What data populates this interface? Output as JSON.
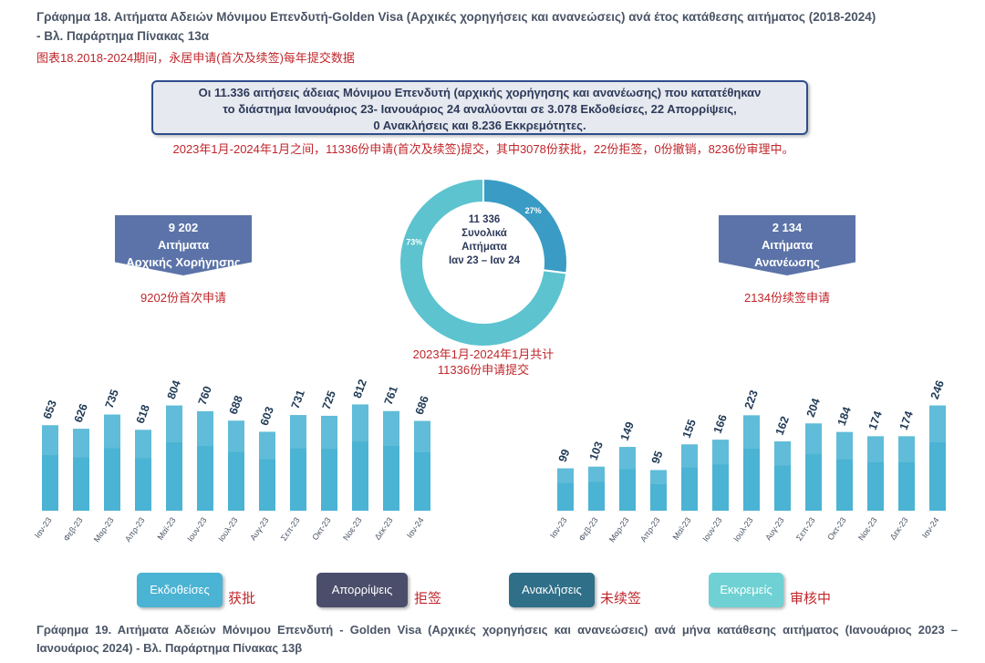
{
  "header": {
    "title_line1": "Γράφημα 18.  Αιτήματα Αδειών Μόνιμου Επενδυτή-Golden Visa (Αρχικές χορηγήσεις και ανανεώσεις) ανά έτος κατάθεσης αιτήματος (2018-2024)",
    "title_line2": "- Βλ. Παράρτημα  Πίνακας 13α",
    "title_cn": "图表18.2018-2024期间，永居申请(首次及续签)每年提交数据"
  },
  "infobox": {
    "line1": "Οι 11.336 αιτήσεις άδειας Μόνιμου Επενδυτή (αρχικής χορήγησης και ανανέωσης) που κατατέθηκαν",
    "line2": "το διάστημα Ιανουάριος 23- Ιανουάριος 24 αναλύονται σε 3.078 Εκδοθείσες, 22 Απορρίψεις,",
    "line3": "0 Ανακλήσεις και 8.236 Εκκρεμότητες.",
    "cn": "2023年1月-2024年1月之间，11336份申请(首次及续签)提交，其中3078份获批，22份拒签，0份撤销，8236份审理中。"
  },
  "left_summary": {
    "value": "9 202",
    "line2": "Αιτήματα",
    "line3": "Αρχικής Χορήγησης",
    "cn": "9202份首次申请"
  },
  "right_summary": {
    "value": "2 134",
    "line2": "Αιτήματα",
    "line3": "Ανανέωσης",
    "cn": "2134份续签申请"
  },
  "donut": {
    "center_value": "11 336",
    "center_line2": "Συνολικά",
    "center_line3": "Αιτήματα",
    "center_line4": "Ιαν 23 – Ιαν 24",
    "cn_line1": "2023年1月-2024年1月共计",
    "cn_line2": "11336份申请提交"
  },
  "chart_data": [
    {
      "type": "pie",
      "labels": [
        "27%",
        "73%"
      ],
      "values": [
        27,
        73
      ],
      "colors": [
        "#3a9cc4",
        "#5cc3cf"
      ]
    },
    {
      "type": "bar",
      "categories": [
        "Ιαν-23",
        "Φεβ-23",
        "Μαρ-23",
        "Απρ-23",
        "Μαϊ-23",
        "Ιουν-23",
        "Ιουλ-23",
        "Αυγ-23",
        "Σεπ-23",
        "Οκτ-23",
        "Νοε-23",
        "Δεκ-23",
        "Ιαν-24"
      ],
      "values": [
        653,
        626,
        735,
        618,
        804,
        760,
        688,
        603,
        731,
        725,
        812,
        761,
        686
      ],
      "ylim": [
        0,
        850
      ],
      "color": "#4bb3d3"
    },
    {
      "type": "bar",
      "categories": [
        "Ιαν-23",
        "Φεβ-23",
        "Μαρ-23",
        "Απρ-23",
        "Μαϊ-23",
        "Ιουν-23",
        "Ιουλ-23",
        "Αυγ-23",
        "Σεπ-23",
        "Οκτ-23",
        "Νοε-23",
        "Δεκ-23",
        "Ιαν-24"
      ],
      "values": [
        99,
        103,
        149,
        95,
        155,
        166,
        223,
        162,
        204,
        184,
        174,
        174,
        246
      ],
      "ylim": [
        0,
        260
      ],
      "color": "#4bb3d3"
    }
  ],
  "legend": [
    {
      "label": "Εκδοθείσες",
      "cn": "获批",
      "color": "#4bb3d3"
    },
    {
      "label": "Απορρίψεις",
      "cn": "拒签",
      "color": "#4a4e6a"
    },
    {
      "label": "Ανακλήσεις",
      "cn": "未续签",
      "color": "#2f6f88"
    },
    {
      "label": "Εκκρεμείς",
      "cn": "审核中",
      "color": "#6fd1d3"
    }
  ],
  "footer": {
    "text": "Γράφημα 19. Αιτήματα Αδειών Μόνιμου Επενδυτή - Golden Visa (Αρχικές χορηγήσεις και ανανεώσεις) ανά μήνα κατάθεσης αιτήματος (Ιανουάριος 2023 – Ιανουάριος 2024) - Βλ. Παράρτημα  Πίνακας 13β"
  }
}
